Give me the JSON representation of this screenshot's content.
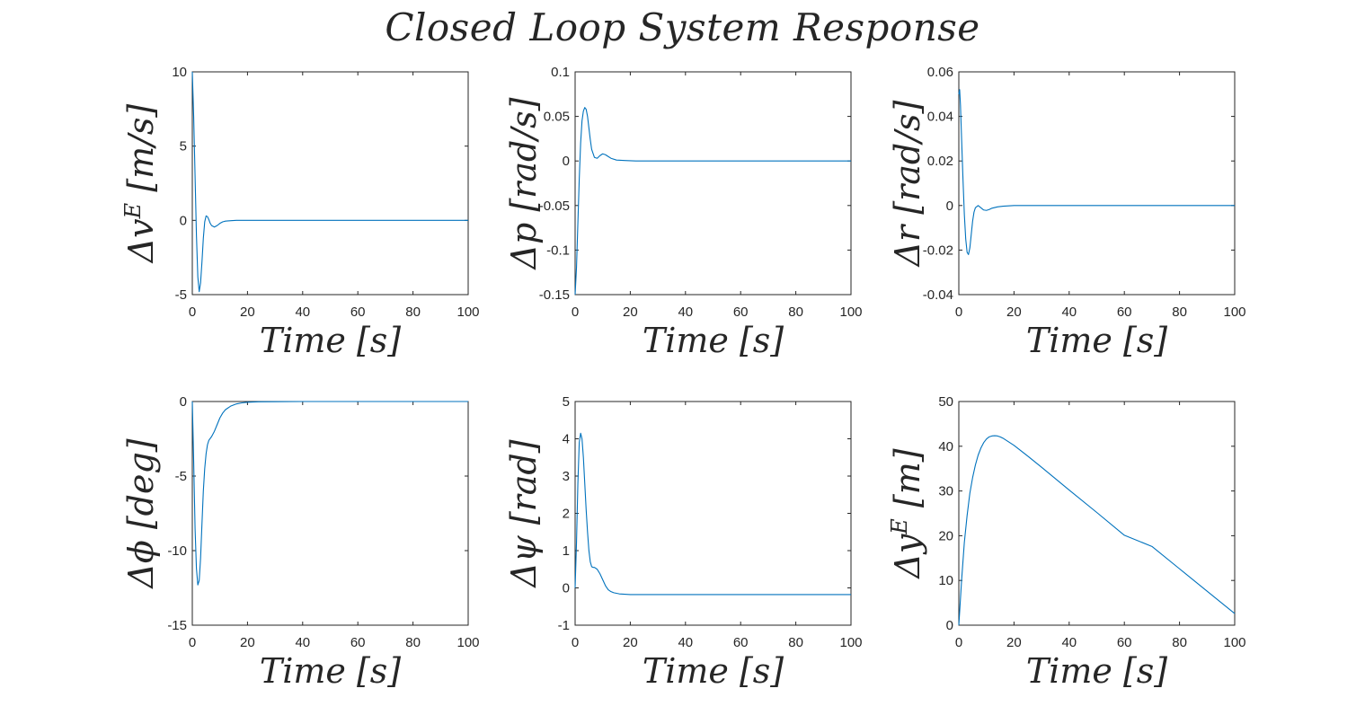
{
  "figure": {
    "title": "Closed Loop System Response",
    "line_color": "#0072BD",
    "axis_color": "#262626"
  },
  "chart_data": [
    {
      "type": "line",
      "xlabel": "Time [s]",
      "ylabel": "Δv^E [m/s]",
      "xlim": [
        0,
        100
      ],
      "ylim": [
        -5,
        10
      ],
      "xticks": [
        0,
        20,
        40,
        60,
        80,
        100
      ],
      "yticks": [
        -5,
        0,
        5,
        10
      ],
      "grid": false,
      "series": [
        {
          "x": [
            0,
            0.5,
            1,
            1.5,
            2,
            2.5,
            3,
            3.5,
            4,
            4.5,
            5,
            5.5,
            6,
            6.5,
            7,
            8,
            9,
            10,
            11,
            12,
            14,
            16,
            20,
            30,
            50,
            100
          ],
          "y": [
            10,
            7,
            3,
            -1,
            -3.8,
            -4.8,
            -4.2,
            -2.8,
            -1.2,
            -0.1,
            0.3,
            0.25,
            0.05,
            -0.2,
            -0.35,
            -0.45,
            -0.35,
            -0.2,
            -0.1,
            -0.05,
            -0.02,
            0,
            0,
            0,
            0,
            0
          ]
        }
      ]
    },
    {
      "type": "line",
      "xlabel": "Time [s]",
      "ylabel": "Δp [rad/s]",
      "xlim": [
        0,
        100
      ],
      "ylim": [
        -0.15,
        0.1
      ],
      "xticks": [
        0,
        20,
        40,
        60,
        80,
        100
      ],
      "yticks": [
        -0.15,
        -0.1,
        -0.05,
        0,
        0.05,
        0.1
      ],
      "grid": false,
      "series": [
        {
          "x": [
            0,
            0.5,
            1,
            1.5,
            2,
            2.5,
            3,
            3.5,
            4,
            4.5,
            5,
            5.5,
            6,
            7,
            8,
            9,
            10,
            11,
            12,
            13,
            15,
            18,
            22,
            30,
            50,
            100
          ],
          "y": [
            -0.15,
            -0.12,
            -0.07,
            -0.02,
            0.02,
            0.045,
            0.056,
            0.06,
            0.058,
            0.05,
            0.037,
            0.024,
            0.013,
            0.004,
            0.003,
            0.006,
            0.008,
            0.007,
            0.005,
            0.003,
            0.001,
            0.0005,
            0,
            0,
            0,
            0
          ]
        }
      ]
    },
    {
      "type": "line",
      "xlabel": "Time [s]",
      "ylabel": "Δr [rad/s]",
      "xlim": [
        0,
        100
      ],
      "ylim": [
        -0.04,
        0.06
      ],
      "xticks": [
        0,
        20,
        40,
        60,
        80,
        100
      ],
      "yticks": [
        -0.04,
        -0.02,
        0,
        0.02,
        0.04,
        0.06
      ],
      "grid": false,
      "series": [
        {
          "x": [
            0,
            0.3,
            0.6,
            1,
            1.5,
            2,
            2.5,
            3,
            3.5,
            4,
            4.5,
            5,
            5.5,
            6,
            7,
            8,
            9,
            10,
            11,
            12,
            14,
            16,
            20,
            30,
            50,
            100
          ],
          "y": [
            0.05,
            0.052,
            0.045,
            0.03,
            0.012,
            -0.004,
            -0.015,
            -0.021,
            -0.022,
            -0.019,
            -0.013,
            -0.007,
            -0.003,
            -0.001,
            0,
            -0.001,
            -0.002,
            -0.0022,
            -0.0018,
            -0.0012,
            -0.0006,
            -0.0003,
            0,
            0,
            0,
            0
          ]
        }
      ]
    },
    {
      "type": "line",
      "xlabel": "Time [s]",
      "ylabel": "Δϕ [deg]",
      "xlim": [
        0,
        100
      ],
      "ylim": [
        -15,
        0
      ],
      "xticks": [
        0,
        20,
        40,
        60,
        80,
        100
      ],
      "yticks": [
        -15,
        -10,
        -5,
        0
      ],
      "grid": false,
      "series": [
        {
          "x": [
            0,
            0.5,
            1,
            1.5,
            2,
            2.5,
            3,
            3.5,
            4,
            4.5,
            5,
            5.5,
            6,
            7,
            8,
            9,
            10,
            11,
            12,
            14,
            16,
            18,
            20,
            24,
            30,
            40,
            100
          ],
          "y": [
            0,
            -4,
            -8.5,
            -11.2,
            -12.3,
            -12.0,
            -10.5,
            -8.2,
            -6.0,
            -4.5,
            -3.5,
            -2.9,
            -2.6,
            -2.35,
            -2.0,
            -1.55,
            -1.1,
            -0.78,
            -0.55,
            -0.3,
            -0.16,
            -0.09,
            -0.05,
            -0.02,
            -0.01,
            0,
            0
          ]
        }
      ]
    },
    {
      "type": "line",
      "xlabel": "Time [s]",
      "ylabel": "Δψ [rad]",
      "xlim": [
        0,
        100
      ],
      "ylim": [
        -1,
        5
      ],
      "xticks": [
        0,
        20,
        40,
        60,
        80,
        100
      ],
      "yticks": [
        -1,
        0,
        1,
        2,
        3,
        4,
        5
      ],
      "grid": false,
      "series": [
        {
          "x": [
            0,
            0.5,
            1,
            1.5,
            2,
            2.5,
            3,
            3.5,
            4,
            4.5,
            5,
            5.5,
            6,
            6.5,
            7,
            8,
            9,
            10,
            11,
            12,
            13,
            14,
            16,
            18,
            20,
            25,
            30,
            40,
            100
          ],
          "y": [
            0,
            1.2,
            2.8,
            3.9,
            4.15,
            4.0,
            3.5,
            2.8,
            2.1,
            1.5,
            1.0,
            0.7,
            0.57,
            0.55,
            0.55,
            0.5,
            0.38,
            0.22,
            0.06,
            -0.05,
            -0.1,
            -0.13,
            -0.16,
            -0.17,
            -0.18,
            -0.18,
            -0.18,
            -0.18,
            -0.18
          ]
        }
      ]
    },
    {
      "type": "line",
      "xlabel": "Time [s]",
      "ylabel": "Δy^E [m]",
      "xlim": [
        0,
        100
      ],
      "ylim": [
        0,
        50
      ],
      "xticks": [
        0,
        20,
        40,
        60,
        80,
        100
      ],
      "yticks": [
        0,
        10,
        20,
        30,
        40,
        50
      ],
      "grid": false,
      "series": [
        {
          "x": [
            0,
            0.5,
            1,
            2,
            3,
            4,
            5,
            6,
            7,
            8,
            9,
            10,
            11,
            12,
            13,
            14,
            15,
            16,
            18,
            20,
            25,
            30,
            40,
            50,
            60,
            70,
            80,
            90,
            100
          ],
          "y": [
            0,
            5,
            10,
            18.5,
            24.5,
            29.5,
            33,
            35.8,
            38,
            39.6,
            40.8,
            41.6,
            42.1,
            42.3,
            42.35,
            42.3,
            42.1,
            41.8,
            41.0,
            40.2,
            37.8,
            35.3,
            30.2,
            25.2,
            20.1,
            17.6,
            12.6,
            7.6,
            2.6
          ]
        }
      ]
    }
  ]
}
